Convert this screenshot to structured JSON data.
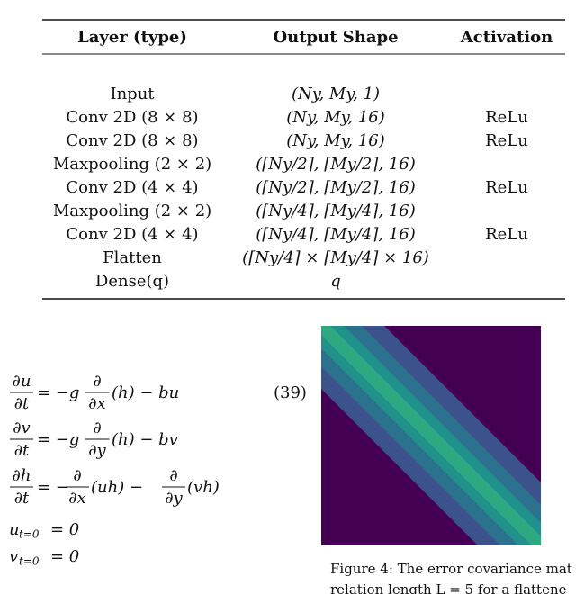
{
  "table": {
    "headers": [
      "Layer (type)",
      "Output Shape",
      "Activation"
    ],
    "rows": [
      [
        "Input",
        "(Ny, My, 1)",
        ""
      ],
      [
        "Conv 2D (8 × 8)",
        "(Ny, My, 16)",
        "ReLu"
      ],
      [
        "Conv 2D (8 × 8)",
        "(Ny, My, 16)",
        "ReLu"
      ],
      [
        "Maxpooling (2 × 2)",
        "(⌈Ny/2⌉, ⌈My/2⌉, 16)",
        ""
      ],
      [
        "Conv 2D (4 × 4)",
        "(⌈Ny/2⌉, ⌈My/2⌉, 16)",
        "ReLu"
      ],
      [
        "Maxpooling (2 × 2)",
        "(⌈Ny/4⌉, ⌈My/4⌉, 16)",
        ""
      ],
      [
        "Conv 2D (4 × 4)",
        "(⌈Ny/4⌉, ⌈My/4⌉, 16)",
        "ReLu"
      ],
      [
        "Flatten",
        "(⌈Ny/4⌉ × ⌈My/4⌉ × 16)",
        ""
      ],
      [
        "Dense(q)",
        "q",
        ""
      ]
    ]
  },
  "equations": [
    [
      "∂u",
      "∂t",
      "= −g",
      "∂",
      "∂x",
      "(h) − bu"
    ],
    [
      "∂v",
      "∂t",
      "= −g",
      "∂",
      "∂y",
      "(h) − bv"
    ],
    [
      "∂h",
      "∂t",
      "= −",
      "∂",
      "∂x",
      "(uh) −",
      "∂",
      "∂y",
      "(vh)"
    ],
    [
      "u",
      "t=0",
      "= 0"
    ],
    [
      "v",
      "t=0",
      "= 0"
    ]
  ],
  "equation_number": "(39)",
  "caption": [
    "Figure 4: The error covariance mat",
    "relation length L = 5 for a flattene"
  ]
}
